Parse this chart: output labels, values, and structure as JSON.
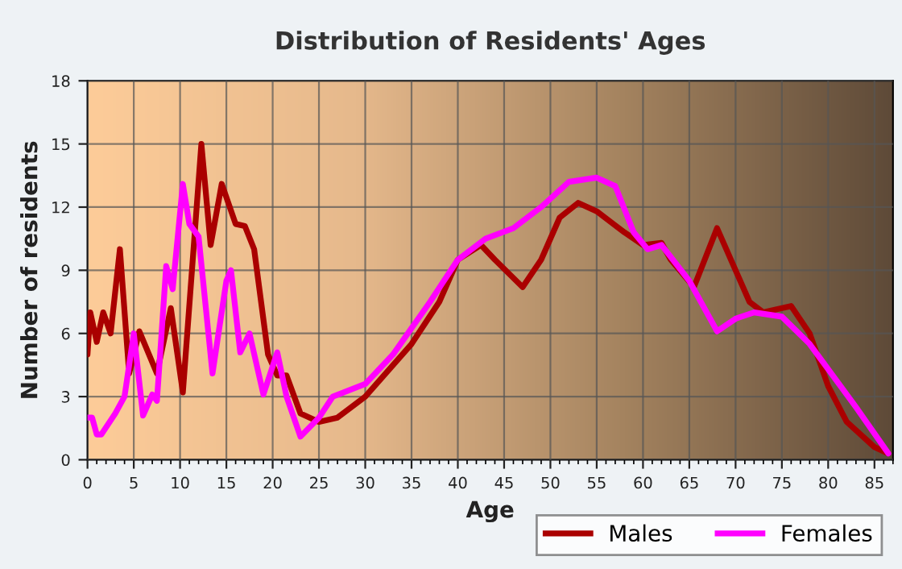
{
  "chart_data": {
    "type": "line",
    "title": "Distribution of Residents' Ages",
    "xlabel": "Age",
    "ylabel": "Number of residents",
    "xlim": [
      0,
      87
    ],
    "xticks": [
      0,
      5,
      10,
      15,
      20,
      25,
      30,
      35,
      40,
      45,
      50,
      55,
      60,
      65,
      70,
      75,
      80,
      85
    ],
    "ylim": [
      0,
      18
    ],
    "yticks": [
      0,
      3,
      6,
      9,
      12,
      15,
      18
    ],
    "grid": true,
    "legend": "bottom right",
    "marker": "none",
    "line_style": "solid",
    "series": [
      {
        "name": "Males",
        "color": "#aa0000",
        "x": [
          0,
          0.3,
          1,
          1.7,
          2.5,
          3.5,
          4.5,
          5.6,
          7.5,
          9,
          10.3,
          12.3,
          13.3,
          14.5,
          16,
          17,
          18,
          19.5,
          20.5,
          21.5,
          23,
          25,
          27,
          30,
          35,
          38,
          40,
          42.5,
          44,
          47,
          49,
          51,
          53,
          55,
          58,
          60,
          62,
          63,
          65.5,
          68,
          70,
          71.5,
          73,
          76,
          78,
          80,
          82,
          85,
          86.5
        ],
        "values": [
          5,
          7,
          5.6,
          7,
          6,
          10,
          4.1,
          6.1,
          4.1,
          7.2,
          3.2,
          15,
          10.2,
          13.1,
          11.2,
          11.1,
          10,
          5,
          4,
          4,
          2.2,
          1.8,
          2,
          3,
          5.5,
          7.5,
          9.5,
          10.2,
          9.5,
          8.2,
          9.5,
          11.5,
          12.2,
          11.8,
          10.8,
          10.2,
          10.3,
          9.5,
          8.2,
          11,
          9,
          7.5,
          7,
          7.3,
          6,
          3.5,
          1.8,
          0.6,
          0.3
        ]
      },
      {
        "name": "Females",
        "color": "#ff00ff",
        "x": [
          0,
          0.5,
          1,
          1.5,
          3,
          4,
          5,
          6,
          7,
          7.5,
          8.5,
          9.2,
          10.3,
          11,
          12,
          13.5,
          15,
          15.5,
          16.5,
          17.5,
          19,
          20.5,
          21.5,
          23,
          25,
          26.5,
          30,
          33,
          37,
          40,
          43,
          46,
          49,
          52,
          55,
          57,
          59,
          60.5,
          62,
          65,
          68,
          70,
          72,
          75,
          78,
          80,
          83,
          86.5
        ],
        "values": [
          2,
          2,
          1.2,
          1.2,
          2.2,
          3,
          6,
          2.1,
          3.1,
          2.8,
          9.2,
          8.1,
          13.1,
          11.2,
          10.6,
          4.1,
          8.5,
          9,
          5.1,
          6,
          3.1,
          5.1,
          3,
          1.1,
          2,
          3,
          3.6,
          5,
          7.5,
          9.5,
          10.5,
          11,
          12,
          13.2,
          13.4,
          13,
          10.8,
          10,
          10.2,
          8.5,
          6.1,
          6.7,
          7,
          6.8,
          5.5,
          4.3,
          2.5,
          0.3
        ]
      }
    ]
  }
}
